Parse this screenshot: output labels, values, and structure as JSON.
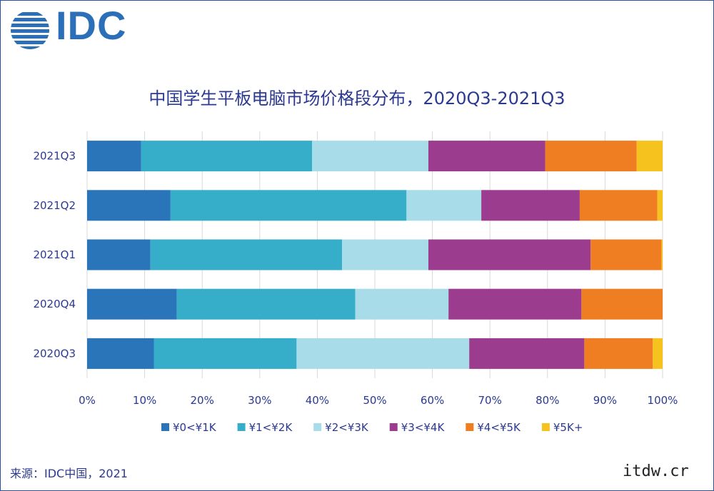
{
  "logo": {
    "text": "IDC"
  },
  "source": "来源：IDC中国，2021",
  "watermark": "itdw.cr",
  "chart_data": {
    "type": "bar",
    "orientation": "horizontal",
    "stacked": true,
    "title": "中国学生平板电脑市场价格段分布，2020Q3-2021Q3",
    "categories": [
      "2021Q3",
      "2021Q2",
      "2021Q1",
      "2020Q4",
      "2020Q3"
    ],
    "xlim": [
      0,
      100
    ],
    "x_ticks": [
      "0%",
      "10%",
      "20%",
      "30%",
      "40%",
      "50%",
      "60%",
      "70%",
      "80%",
      "90%",
      "100%"
    ],
    "grid": "vertical",
    "legend_position": "bottom",
    "series": [
      {
        "name": "¥0<¥1K",
        "color": "#2a74b9",
        "values": [
          9.4,
          14.5,
          11.0,
          15.6,
          11.6
        ]
      },
      {
        "name": "¥1<¥2K",
        "color": "#36aeca",
        "values": [
          29.7,
          41.0,
          33.3,
          31.0,
          24.8
        ]
      },
      {
        "name": "¥2<¥3K",
        "color": "#a8dce8",
        "values": [
          20.2,
          13.0,
          15.0,
          16.2,
          30.0
        ]
      },
      {
        "name": "¥3<¥4K",
        "color": "#9b3c8f",
        "values": [
          20.3,
          17.1,
          28.2,
          23.1,
          20.0
        ]
      },
      {
        "name": "¥4<¥5K",
        "color": "#ef7d22",
        "values": [
          15.9,
          13.5,
          12.3,
          14.1,
          11.9
        ]
      },
      {
        "name": "¥5K+",
        "color": "#f6c21e",
        "values": [
          4.5,
          0.9,
          0.2,
          0.0,
          1.7
        ]
      }
    ]
  }
}
